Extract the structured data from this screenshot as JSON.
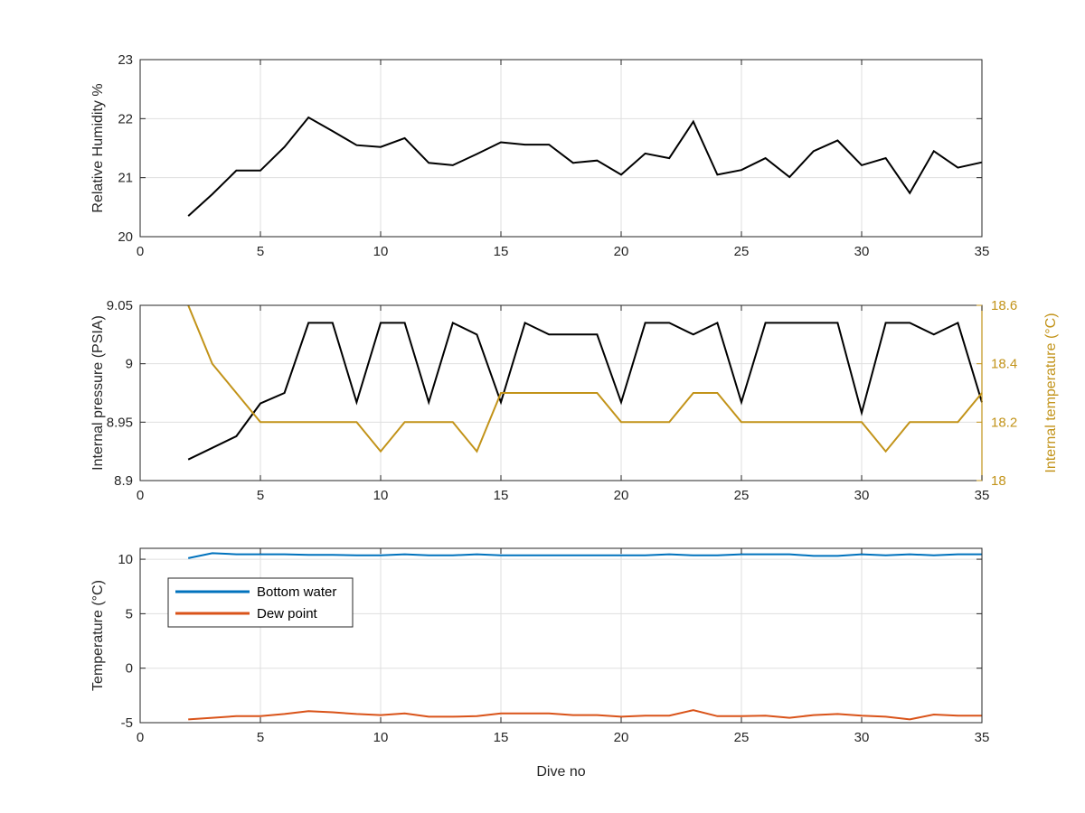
{
  "figure": {
    "background": "#ffffff",
    "axis_color": "#262626",
    "grid_color": "#dfdfdf"
  },
  "chart_data": [
    {
      "type": "line",
      "xlabel": "",
      "ylabel": "Relative Humidity %",
      "xlim": [
        0,
        35
      ],
      "ylim": [
        20,
        23
      ],
      "xticks": [
        0,
        5,
        10,
        15,
        20,
        25,
        30,
        35
      ],
      "yticks": [
        20,
        21,
        22,
        23
      ],
      "grid": true,
      "series": [
        {
          "color": "#000000",
          "axis": "left",
          "x": [
            2,
            3,
            4,
            5,
            6,
            7,
            8,
            9,
            10,
            11,
            12,
            13,
            14,
            15,
            16,
            17,
            18,
            19,
            20,
            21,
            22,
            23,
            24,
            25,
            26,
            27,
            28,
            29,
            30,
            31,
            32,
            33,
            34,
            35
          ],
          "y": [
            20.35,
            20.72,
            21.12,
            21.12,
            21.52,
            22.02,
            21.79,
            21.55,
            21.52,
            21.67,
            21.25,
            21.21,
            21.4,
            21.6,
            21.56,
            21.56,
            21.25,
            21.29,
            21.05,
            21.41,
            21.33,
            21.95,
            21.05,
            21.13,
            21.33,
            21.01,
            21.45,
            21.63,
            21.21,
            21.33,
            20.74,
            21.45,
            21.17,
            21.26
          ]
        }
      ]
    },
    {
      "type": "line",
      "xlabel": "",
      "ylabel": "Internal pressure (PSIA)",
      "ylabel_right": "Internal temperature (°C)",
      "xlim": [
        0,
        35
      ],
      "ylim": [
        8.9,
        9.05
      ],
      "ylim_right": [
        18,
        18.6
      ],
      "xticks": [
        0,
        5,
        10,
        15,
        20,
        25,
        30,
        35
      ],
      "yticks": [
        8.9,
        8.95,
        9,
        9.05
      ],
      "yticks_labels": [
        "8.9",
        "8.95",
        "9",
        "9.05"
      ],
      "yticks_right": [
        18,
        18.2,
        18.4,
        18.6
      ],
      "yticks_right_labels": [
        "18",
        "18.2",
        "18.4",
        "18.6"
      ],
      "right_axis_color": "#c29319",
      "grid": true,
      "series": [
        {
          "color": "#000000",
          "axis": "left",
          "x": [
            2,
            3,
            4,
            5,
            6,
            7,
            8,
            9,
            10,
            11,
            12,
            13,
            14,
            15,
            16,
            17,
            18,
            19,
            20,
            21,
            22,
            23,
            24,
            25,
            26,
            27,
            28,
            29,
            30,
            31,
            32,
            33,
            34,
            35
          ],
          "y": [
            8.918,
            8.928,
            8.938,
            8.966,
            8.975,
            9.035,
            9.035,
            8.967,
            9.035,
            9.035,
            8.967,
            9.035,
            9.025,
            8.967,
            9.035,
            9.025,
            9.025,
            9.025,
            8.967,
            9.035,
            9.035,
            9.025,
            9.035,
            8.967,
            9.035,
            9.035,
            9.035,
            9.035,
            8.958,
            9.035,
            9.035,
            9.025,
            9.035,
            8.967
          ]
        },
        {
          "color": "#c29319",
          "axis": "right",
          "x": [
            2,
            3,
            4,
            5,
            6,
            7,
            8,
            9,
            10,
            11,
            12,
            13,
            14,
            15,
            16,
            17,
            18,
            19,
            20,
            21,
            22,
            23,
            24,
            25,
            26,
            27,
            28,
            29,
            30,
            31,
            32,
            33,
            34,
            35
          ],
          "y": [
            18.6,
            18.4,
            18.3,
            18.2,
            18.2,
            18.2,
            18.2,
            18.2,
            18.1,
            18.2,
            18.2,
            18.2,
            18.1,
            18.3,
            18.3,
            18.3,
            18.3,
            18.3,
            18.2,
            18.2,
            18.2,
            18.3,
            18.3,
            18.2,
            18.2,
            18.2,
            18.2,
            18.2,
            18.2,
            18.1,
            18.2,
            18.2,
            18.2,
            18.3
          ]
        }
      ]
    },
    {
      "type": "line",
      "xlabel": "Dive no",
      "ylabel": "Temperature (°C)",
      "xlim": [
        0,
        35
      ],
      "ylim": [
        -5,
        11
      ],
      "xticks": [
        0,
        5,
        10,
        15,
        20,
        25,
        30,
        35
      ],
      "yticks": [
        -5,
        0,
        5,
        10
      ],
      "grid": true,
      "legend_position": "top-left",
      "series": [
        {
          "name": "Bottom water",
          "color": "#0072bd",
          "axis": "left",
          "x": [
            2,
            3,
            4,
            5,
            6,
            7,
            8,
            9,
            10,
            11,
            12,
            13,
            14,
            15,
            16,
            17,
            18,
            19,
            20,
            21,
            22,
            23,
            24,
            25,
            26,
            27,
            28,
            29,
            30,
            31,
            32,
            33,
            34,
            35
          ],
          "y": [
            10.1,
            10.55,
            10.45,
            10.45,
            10.45,
            10.4,
            10.4,
            10.35,
            10.35,
            10.45,
            10.35,
            10.35,
            10.45,
            10.35,
            10.35,
            10.35,
            10.35,
            10.35,
            10.35,
            10.35,
            10.45,
            10.35,
            10.35,
            10.45,
            10.45,
            10.45,
            10.3,
            10.3,
            10.45,
            10.35,
            10.45,
            10.35,
            10.45,
            10.45
          ]
        },
        {
          "name": "Dew point",
          "color": "#d95319",
          "axis": "left",
          "x": [
            2,
            3,
            4,
            5,
            6,
            7,
            8,
            9,
            10,
            11,
            12,
            13,
            14,
            15,
            16,
            17,
            18,
            19,
            20,
            21,
            22,
            23,
            24,
            25,
            26,
            27,
            28,
            29,
            30,
            31,
            32,
            33,
            34,
            35
          ],
          "y": [
            -4.7,
            -4.55,
            -4.4,
            -4.4,
            -4.2,
            -3.95,
            -4.05,
            -4.2,
            -4.3,
            -4.15,
            -4.45,
            -4.45,
            -4.4,
            -4.15,
            -4.15,
            -4.15,
            -4.3,
            -4.3,
            -4.45,
            -4.35,
            -4.35,
            -3.85,
            -4.4,
            -4.4,
            -4.35,
            -4.55,
            -4.3,
            -4.2,
            -4.35,
            -4.45,
            -4.7,
            -4.25,
            -4.35,
            -4.35
          ]
        }
      ]
    }
  ]
}
